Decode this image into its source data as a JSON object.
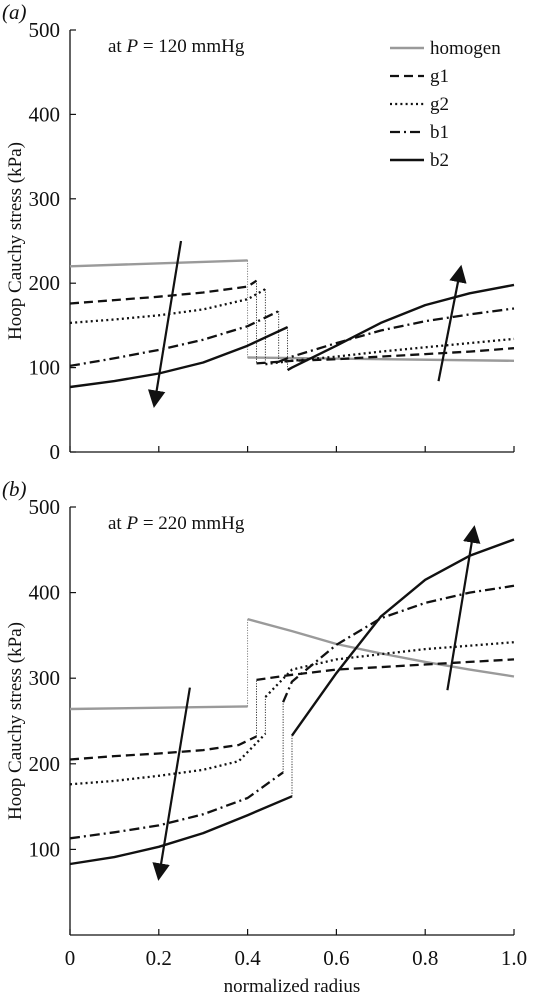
{
  "chart_data": [
    {
      "type": "line",
      "panel_label": "(a)",
      "annotation": {
        "prefix": "at ",
        "variable": "P",
        "suffix": " = 120 mmHg"
      },
      "ylabel": "Hoop Cauchy stress (kPa)",
      "xlabel": "",
      "xlim": [
        0,
        1.0
      ],
      "ylim": [
        0,
        500
      ],
      "xticks": [
        0,
        0.2,
        0.4,
        0.6,
        0.8,
        1.0
      ],
      "yticks": [
        0,
        100,
        200,
        300,
        400,
        500
      ],
      "xtick_labels": [
        "",
        "",
        "",
        "",
        "",
        ""
      ],
      "ytick_labels": [
        "0",
        "100",
        "200",
        "300",
        "400",
        "500"
      ],
      "legend": {
        "placement": "top-right",
        "entries": [
          "homogen",
          "g1",
          "g2",
          "b1",
          "b2"
        ]
      },
      "series": [
        {
          "name": "homogen",
          "style": "solid-gray",
          "segments": [
            [
              [
                0,
                220
              ],
              [
                0.4,
                227
              ]
            ],
            [
              [
                0.4,
                112
              ],
              [
                1.0,
                108
              ]
            ]
          ]
        },
        {
          "name": "g1",
          "style": "dashed",
          "segments": [
            [
              [
                0,
                176
              ],
              [
                0.1,
                180
              ],
              [
                0.2,
                184
              ],
              [
                0.3,
                189
              ],
              [
                0.4,
                196
              ],
              [
                0.42,
                203
              ]
            ],
            [
              [
                0.42,
                105
              ],
              [
                0.5,
                108
              ],
              [
                0.6,
                110
              ],
              [
                0.7,
                113
              ],
              [
                0.8,
                116
              ],
              [
                0.9,
                119
              ],
              [
                1.0,
                123
              ]
            ]
          ]
        },
        {
          "name": "g2",
          "style": "dotted",
          "segments": [
            [
              [
                0,
                153
              ],
              [
                0.1,
                157
              ],
              [
                0.2,
                162
              ],
              [
                0.3,
                169
              ],
              [
                0.4,
                181
              ],
              [
                0.44,
                193
              ]
            ],
            [
              [
                0.44,
                104
              ],
              [
                0.5,
                108
              ],
              [
                0.6,
                113
              ],
              [
                0.7,
                119
              ],
              [
                0.8,
                124
              ],
              [
                0.9,
                129
              ],
              [
                1.0,
                134
              ]
            ]
          ]
        },
        {
          "name": "b1",
          "style": "dash-dot",
          "segments": [
            [
              [
                0,
                102
              ],
              [
                0.1,
                111
              ],
              [
                0.2,
                121
              ],
              [
                0.3,
                133
              ],
              [
                0.4,
                149
              ],
              [
                0.47,
                167
              ]
            ],
            [
              [
                0.47,
                107
              ],
              [
                0.5,
                113
              ],
              [
                0.6,
                129
              ],
              [
                0.7,
                144
              ],
              [
                0.8,
                155
              ],
              [
                0.9,
                163
              ],
              [
                1.0,
                170
              ]
            ]
          ]
        },
        {
          "name": "b2",
          "style": "solid",
          "segments": [
            [
              [
                0,
                77
              ],
              [
                0.1,
                84
              ],
              [
                0.2,
                93
              ],
              [
                0.3,
                106
              ],
              [
                0.4,
                126
              ],
              [
                0.49,
                148
              ]
            ],
            [
              [
                0.49,
                97
              ],
              [
                0.5,
                100
              ],
              [
                0.6,
                126
              ],
              [
                0.7,
                153
              ],
              [
                0.8,
                174
              ],
              [
                0.9,
                188
              ],
              [
                1.0,
                198
              ]
            ]
          ]
        }
      ],
      "arrows": [
        {
          "from": [
            0.25,
            250
          ],
          "to": [
            0.19,
            56
          ]
        },
        {
          "from": [
            0.83,
            84
          ],
          "to": [
            0.88,
            218
          ]
        }
      ]
    },
    {
      "type": "line",
      "panel_label": "(b)",
      "annotation": {
        "prefix": "at ",
        "variable": "P",
        "suffix": " = 220 mmHg"
      },
      "ylabel": "Hoop Cauchy stress (kPa)",
      "xlabel": "normalized radius",
      "xlim": [
        0,
        1.0
      ],
      "ylim": [
        0,
        500
      ],
      "xticks": [
        0,
        0.2,
        0.4,
        0.6,
        0.8,
        1.0
      ],
      "yticks": [
        100,
        200,
        300,
        400,
        500
      ],
      "xtick_labels": [
        "0",
        "0.2",
        "0.4",
        "0.6",
        "0.8",
        "1.0"
      ],
      "ytick_labels": [
        "100",
        "200",
        "300",
        "400",
        "500"
      ],
      "series": [
        {
          "name": "homogen",
          "style": "solid-gray",
          "segments": [
            [
              [
                0,
                264
              ],
              [
                0.4,
                267
              ]
            ],
            [
              [
                0.4,
                369
              ],
              [
                0.5,
                355
              ],
              [
                0.6,
                340
              ],
              [
                0.7,
                329
              ],
              [
                0.8,
                319
              ],
              [
                0.9,
                310
              ],
              [
                1.0,
                302
              ]
            ]
          ]
        },
        {
          "name": "g1",
          "style": "dashed",
          "segments": [
            [
              [
                0,
                205
              ],
              [
                0.1,
                209
              ],
              [
                0.2,
                212
              ],
              [
                0.3,
                216
              ],
              [
                0.38,
                222
              ],
              [
                0.42,
                232
              ]
            ],
            [
              [
                0.42,
                298
              ],
              [
                0.5,
                304
              ],
              [
                0.6,
                310
              ],
              [
                0.7,
                313
              ],
              [
                0.8,
                316
              ],
              [
                0.9,
                319
              ],
              [
                1.0,
                322
              ]
            ]
          ]
        },
        {
          "name": "g2",
          "style": "dotted",
          "segments": [
            [
              [
                0,
                176
              ],
              [
                0.1,
                180
              ],
              [
                0.2,
                186
              ],
              [
                0.3,
                193
              ],
              [
                0.38,
                203
              ],
              [
                0.44,
                235
              ]
            ],
            [
              [
                0.44,
                278
              ],
              [
                0.5,
                310
              ],
              [
                0.6,
                322
              ],
              [
                0.7,
                328
              ],
              [
                0.8,
                334
              ],
              [
                0.9,
                338
              ],
              [
                1.0,
                342
              ]
            ]
          ]
        },
        {
          "name": "b1",
          "style": "dash-dot",
          "segments": [
            [
              [
                0,
                113
              ],
              [
                0.1,
                120
              ],
              [
                0.2,
                128
              ],
              [
                0.3,
                141
              ],
              [
                0.4,
                160
              ],
              [
                0.48,
                190
              ]
            ],
            [
              [
                0.48,
                272
              ],
              [
                0.5,
                296
              ],
              [
                0.6,
                339
              ],
              [
                0.7,
                370
              ],
              [
                0.8,
                388
              ],
              [
                0.9,
                400
              ],
              [
                1.0,
                408
              ]
            ]
          ]
        },
        {
          "name": "b2",
          "style": "solid",
          "segments": [
            [
              [
                0,
                83
              ],
              [
                0.1,
                91
              ],
              [
                0.2,
                103
              ],
              [
                0.3,
                119
              ],
              [
                0.4,
                140
              ],
              [
                0.5,
                162
              ]
            ],
            [
              [
                0.5,
                233
              ],
              [
                0.6,
                306
              ],
              [
                0.7,
                372
              ],
              [
                0.8,
                415
              ],
              [
                0.9,
                443
              ],
              [
                1.0,
                462
              ]
            ]
          ]
        }
      ],
      "arrows": [
        {
          "from": [
            0.27,
            289
          ],
          "to": [
            0.2,
            67
          ]
        },
        {
          "from": [
            0.85,
            286
          ],
          "to": [
            0.91,
            475
          ]
        }
      ]
    }
  ]
}
